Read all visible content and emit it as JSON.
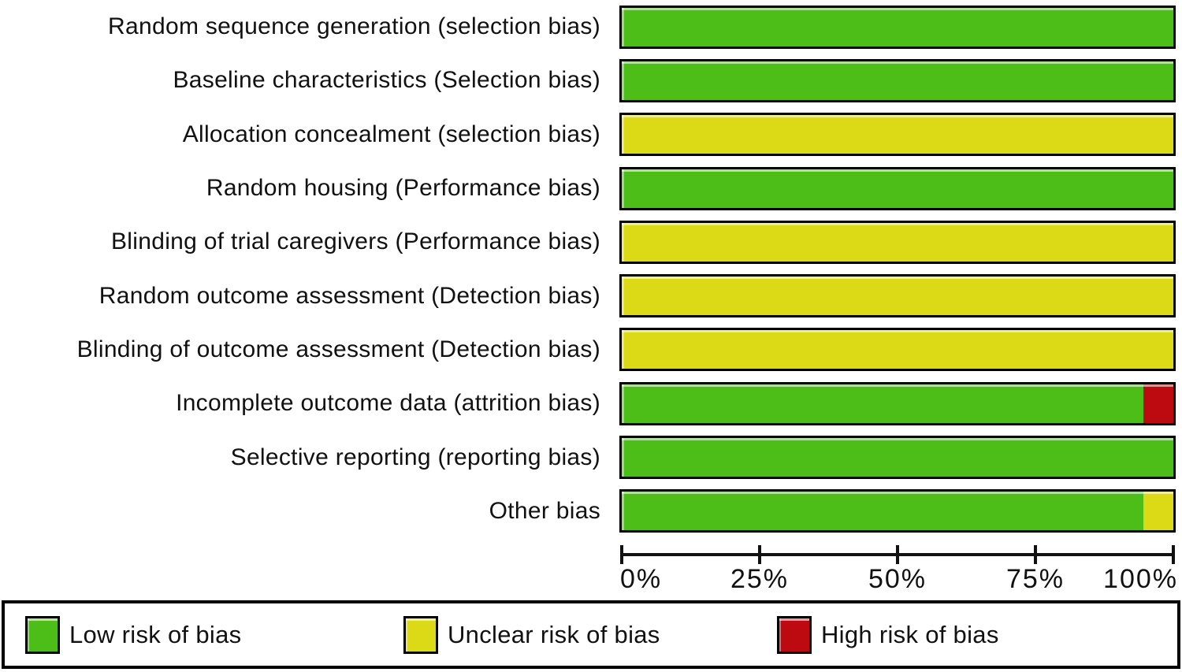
{
  "chart_data": {
    "type": "bar",
    "orientation": "horizontal-stacked",
    "categories": [
      "Random sequence generation (selection bias)",
      "Baseline characteristics (Selection bias)",
      "Allocation concealment (selection bias)",
      "Random housing (Performance bias)",
      "Blinding of trial caregivers (Performance bias)",
      "Random outcome assessment (Detection bias)",
      "Blinding of outcome assessment (Detection bias)",
      "Incomplete outcome data (attrition bias)",
      "Selective reporting (reporting bias)",
      "Other bias"
    ],
    "series": [
      {
        "name": "Low risk of bias",
        "color": "#4cbe17",
        "values": [
          100,
          100,
          0,
          100,
          0,
          0,
          0,
          94.5,
          100,
          94.5
        ]
      },
      {
        "name": "Unclear risk of bias",
        "color": "#dcd916",
        "values": [
          0,
          0,
          100,
          0,
          100,
          100,
          100,
          0,
          0,
          5.5
        ]
      },
      {
        "name": "High risk of bias",
        "color": "#bd0a10",
        "values": [
          0,
          0,
          0,
          0,
          0,
          0,
          0,
          5.5,
          0,
          0
        ]
      }
    ],
    "x_axis": {
      "ticks": [
        "0%",
        "25%",
        "50%",
        "75%",
        "100%"
      ],
      "range": [
        0,
        100
      ]
    },
    "legend_position": "bottom",
    "grid": false
  },
  "legend": {
    "items": [
      {
        "label": "Low risk of bias",
        "color": "#4cbe17"
      },
      {
        "label": "Unclear risk of bias",
        "color": "#dcd916"
      },
      {
        "label": "High risk of bias",
        "color": "#bd0a10"
      }
    ]
  }
}
